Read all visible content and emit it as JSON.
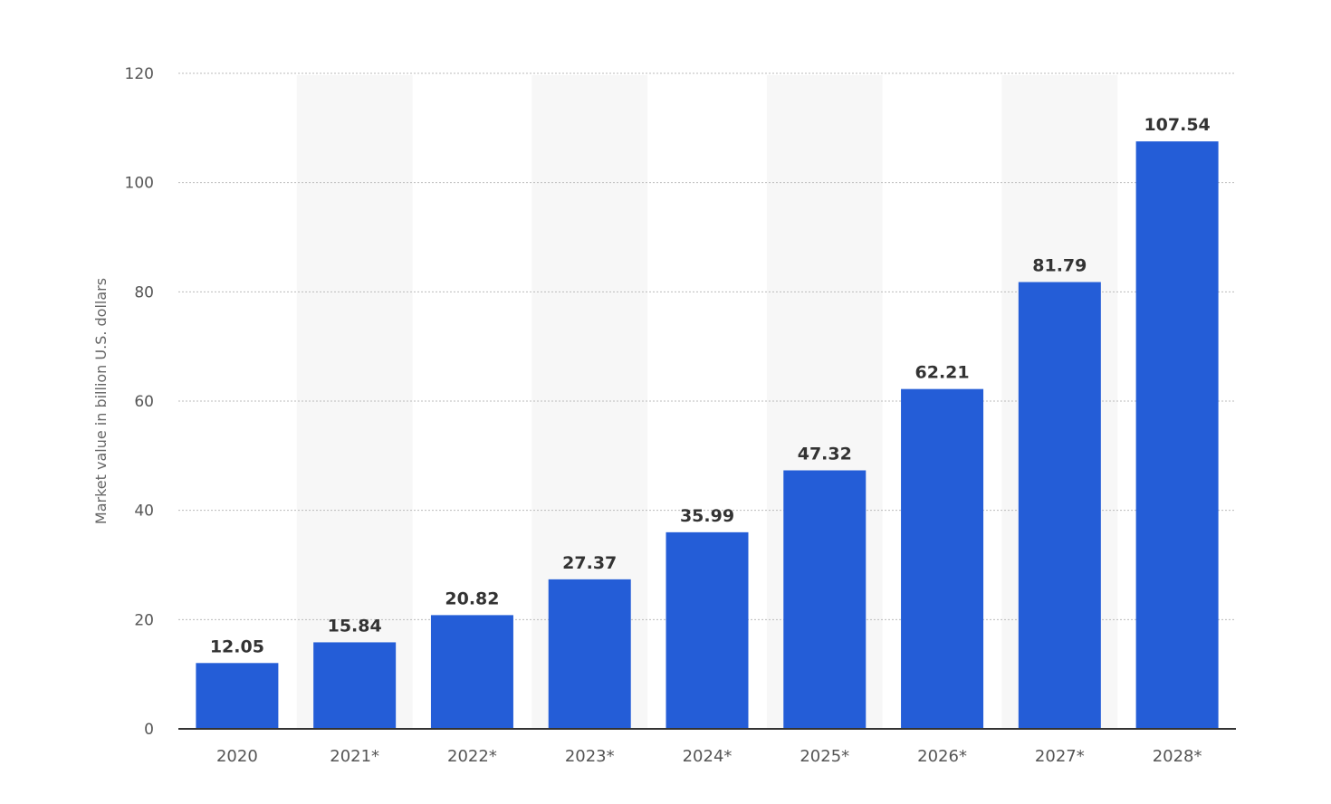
{
  "chart_data": {
    "type": "bar",
    "categories": [
      "2020",
      "2021*",
      "2022*",
      "2023*",
      "2024*",
      "2025*",
      "2026*",
      "2027*",
      "2028*"
    ],
    "values": [
      12.05,
      15.84,
      20.82,
      27.37,
      35.99,
      47.32,
      62.21,
      81.79,
      107.54
    ],
    "value_labels": [
      "12.05",
      "15.84",
      "20.82",
      "27.37",
      "35.99",
      "47.32",
      "62.21",
      "81.79",
      "107.54"
    ],
    "title": "",
    "xlabel": "",
    "ylabel": "Market value in billion U.S. dollars",
    "ylim": [
      0,
      120
    ],
    "yticks": [
      0,
      20,
      40,
      60,
      80,
      100,
      120
    ],
    "grid": true,
    "legend": "none",
    "colors": {
      "bar": "#245dd7",
      "grid": "#bbbbbb",
      "axis": "#333333",
      "band": "#f7f7f7"
    }
  }
}
